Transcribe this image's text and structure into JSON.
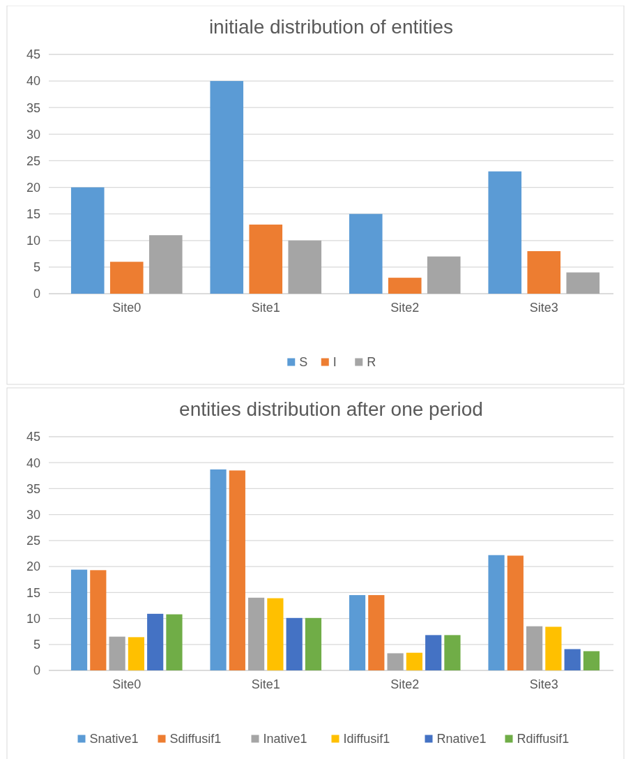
{
  "chart_data": [
    {
      "type": "bar",
      "title": "initiale distribution of entities",
      "categories": [
        "Site0",
        "Site1",
        "Site2",
        "Site3"
      ],
      "ylim": [
        0,
        45
      ],
      "yticks": [
        0,
        5,
        10,
        15,
        20,
        25,
        30,
        35,
        40,
        45
      ],
      "grid": "y",
      "legend": "bottom",
      "series": [
        {
          "name": "S",
          "color": "#5b9bd5",
          "values": [
            20,
            40,
            15,
            23
          ]
        },
        {
          "name": "I",
          "color": "#ed7d31",
          "values": [
            6,
            13,
            3,
            8
          ]
        },
        {
          "name": "R",
          "color": "#a5a5a5",
          "values": [
            11,
            10,
            7,
            4
          ]
        }
      ]
    },
    {
      "type": "bar",
      "title": "entities distribution after one period",
      "categories": [
        "Site0",
        "Site1",
        "Site2",
        "Site3"
      ],
      "ylim": [
        0,
        45
      ],
      "yticks": [
        0,
        5,
        10,
        15,
        20,
        25,
        30,
        35,
        40,
        45
      ],
      "grid": "y",
      "legend": "bottom",
      "series": [
        {
          "name": "Snative1",
          "color": "#5b9bd5",
          "values": [
            19.4,
            38.7,
            14.5,
            22.2
          ]
        },
        {
          "name": "Sdiffusif1",
          "color": "#ed7d31",
          "values": [
            19.3,
            38.5,
            14.5,
            22.1
          ]
        },
        {
          "name": "Inative1",
          "color": "#a5a5a5",
          "values": [
            6.5,
            14.0,
            3.3,
            8.5
          ]
        },
        {
          "name": "Idiffusif1",
          "color": "#ffc000",
          "values": [
            6.4,
            13.9,
            3.4,
            8.4
          ]
        },
        {
          "name": "Rnative1",
          "color": "#4472c4",
          "values": [
            10.9,
            10.1,
            6.8,
            4.1
          ]
        },
        {
          "name": "Rdiffusif1",
          "color": "#70ad47",
          "values": [
            10.8,
            10.1,
            6.8,
            3.7
          ]
        }
      ]
    }
  ]
}
